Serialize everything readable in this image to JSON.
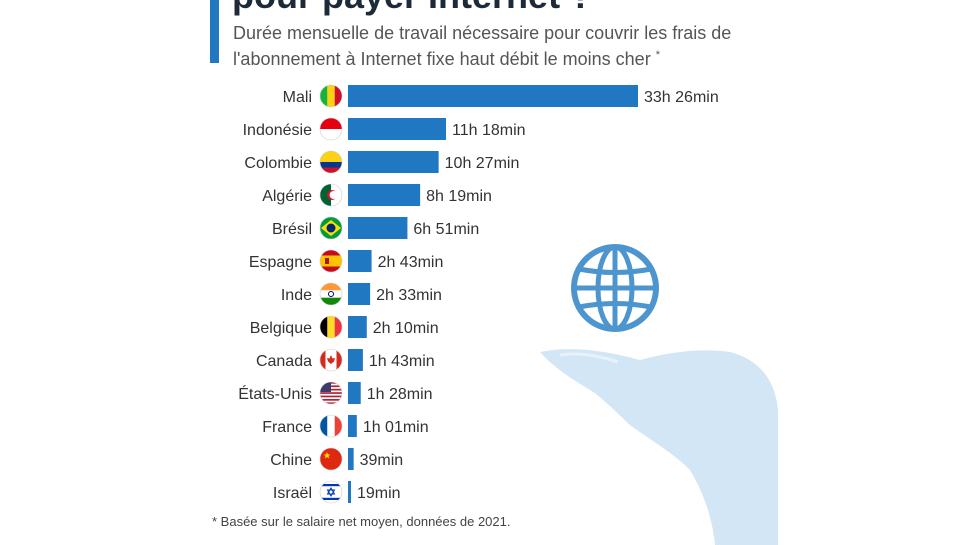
{
  "header": {
    "title": "pour payer Internet ?",
    "subtitle": "Durée mensuelle de travail nécessaire pour couvrir les frais de l'abonnement à Internet fixe haut débit le moins cher",
    "subtitle_mark": "*"
  },
  "footnote": "* Basée sur le salaire net moyen, données de 2021.",
  "colors": {
    "accent": "#1f78c1",
    "bar": "#1f78c1",
    "illustration": "#cfe3f4",
    "globe": "#4d95cf"
  },
  "chart_data": {
    "type": "bar",
    "orientation": "horizontal",
    "unit": "minutes",
    "categories": [
      "Mali",
      "Indonésie",
      "Colombie",
      "Algérie",
      "Brésil",
      "Espagne",
      "Inde",
      "Belgique",
      "Canada",
      "États-Unis",
      "France",
      "Chine",
      "Israël"
    ],
    "values": [
      2006,
      678,
      627,
      499,
      411,
      163,
      153,
      130,
      103,
      88,
      61,
      39,
      19
    ],
    "labels": [
      "33h 26min",
      "11h 18min",
      "10h 27min",
      "8h 19min",
      "6h 51min",
      "2h 43min",
      "2h 33min",
      "2h 10min",
      "1h 43min",
      "1h 28min",
      "1h 01min",
      "39min",
      "19min"
    ],
    "flags": [
      "mali-flag-icon",
      "indonesia-flag-icon",
      "colombia-flag-icon",
      "algeria-flag-icon",
      "brazil-flag-icon",
      "spain-flag-icon",
      "india-flag-icon",
      "belgium-flag-icon",
      "canada-flag-icon",
      "usa-flag-icon",
      "france-flag-icon",
      "china-flag-icon",
      "israel-flag-icon"
    ],
    "legend": "none",
    "grid": false
  }
}
